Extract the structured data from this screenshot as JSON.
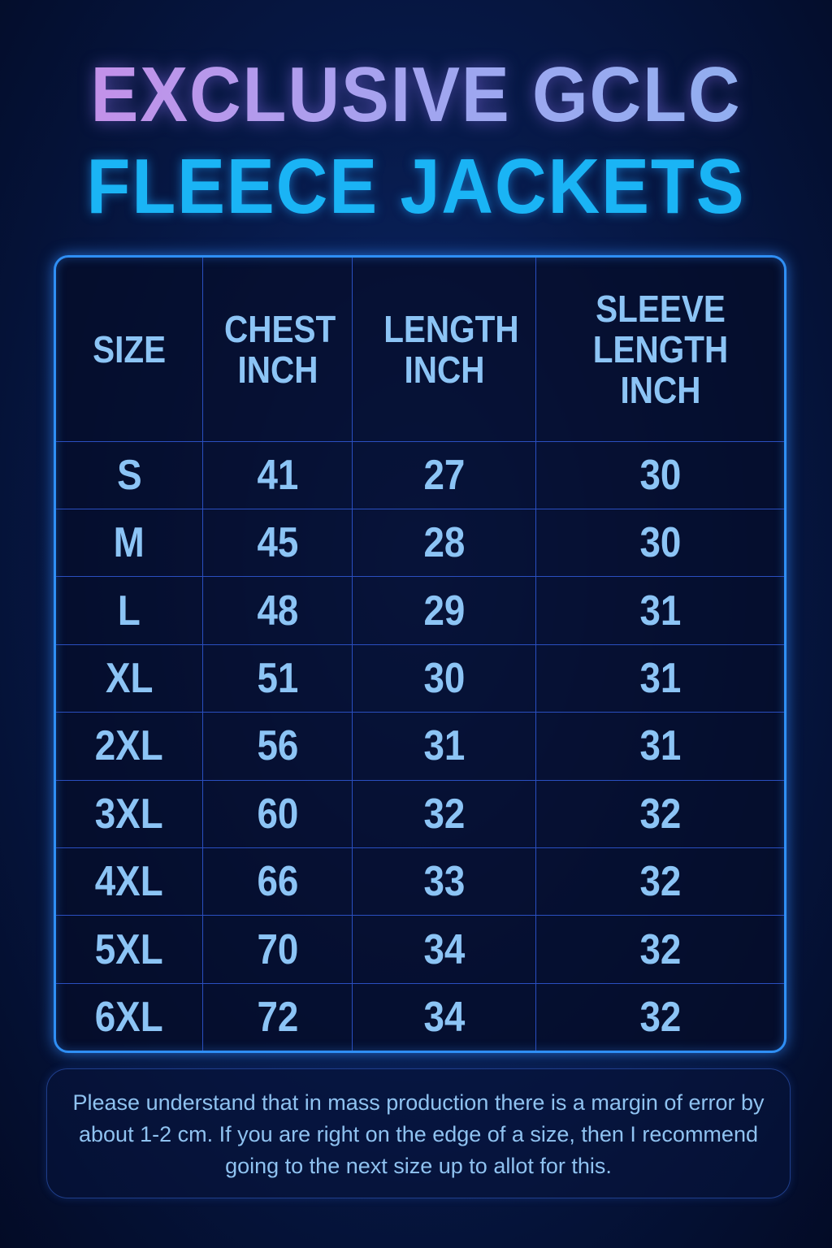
{
  "title": {
    "line1": "EXCLUSIVE GCLC",
    "line2": "FLEECE JACKETS"
  },
  "table": {
    "headers": [
      "SIZE",
      "CHEST INCH",
      "LENGTH INCH",
      "SLEEVE LENGTH INCH"
    ],
    "rows": [
      [
        "S",
        "41",
        "27",
        "30"
      ],
      [
        "M",
        "45",
        "28",
        "30"
      ],
      [
        "L",
        "48",
        "29",
        "31"
      ],
      [
        "XL",
        "51",
        "30",
        "31"
      ],
      [
        "2XL",
        "56",
        "31",
        "31"
      ],
      [
        "3XL",
        "60",
        "32",
        "32"
      ],
      [
        "4XL",
        "66",
        "33",
        "32"
      ],
      [
        "5XL",
        "70",
        "34",
        "32"
      ],
      [
        "6XL",
        "72",
        "34",
        "32"
      ]
    ]
  },
  "note": "Please understand that in mass production there is a margin of error by about 1-2 cm. If you are right on the edge of a size, then I recommend going to the next size up to allot for this.",
  "colors": {
    "title_line1": "#b49aec",
    "title_line2": "#1ab4f5",
    "table_border": "#2f8ff5",
    "cell_text": "#8cc4f5",
    "background": "#071a4a"
  }
}
